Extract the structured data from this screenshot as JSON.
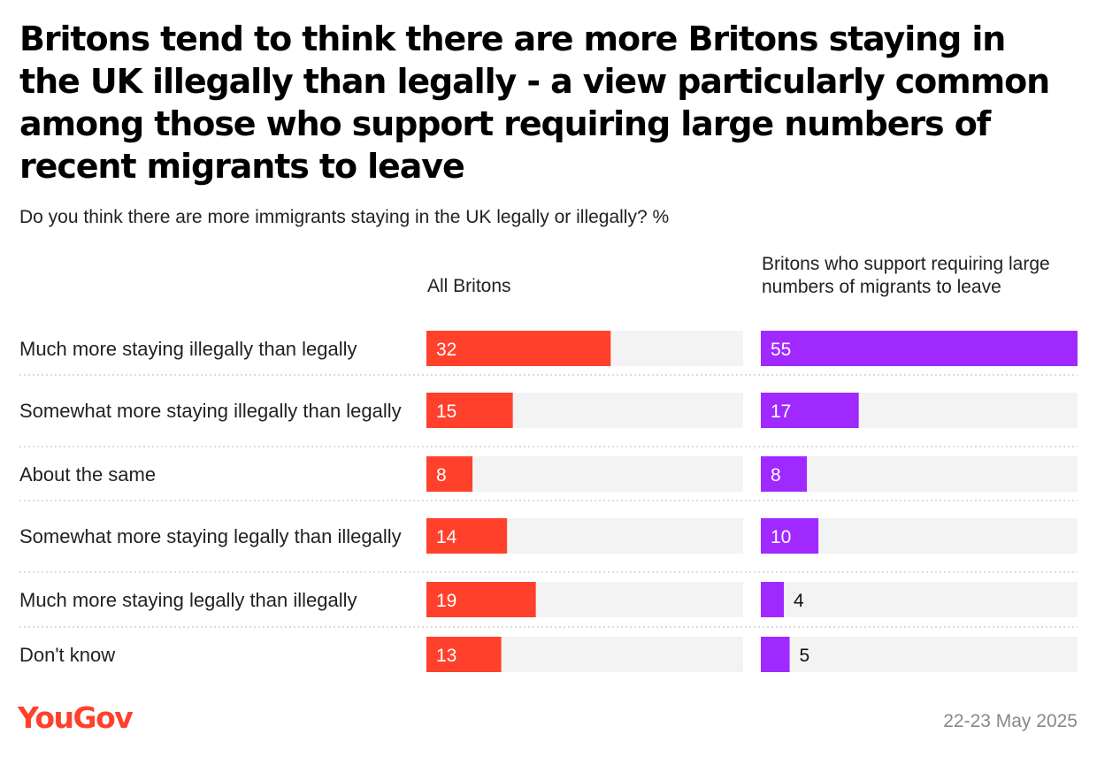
{
  "chart_data": {
    "type": "bar",
    "orientation": "horizontal",
    "title": "Britons tend to think there are more Britons staying in the UK illegally than legally - a view particularly common among those who support requiring large numbers of recent migrants to leave",
    "subtitle": "Do you think there are more immigrants staying in the UK legally or illegally? %",
    "categories": [
      "Much more staying illegally than legally",
      "Somewhat more staying illegally than legally",
      "About the same",
      "Somewhat more staying legally than illegally",
      "Much more staying legally than illegally",
      "Don't know"
    ],
    "series": [
      {
        "name": "All Britons",
        "values": [
          32,
          15,
          8,
          14,
          19,
          13
        ],
        "color": "#ff412c"
      },
      {
        "name": "Britons who support requiring large numbers of migrants to leave",
        "values": [
          55,
          17,
          8,
          10,
          4,
          5
        ],
        "color": "#9f29ff"
      }
    ],
    "xlim": [
      0,
      55
    ],
    "track_color": "#f3f3f3",
    "grid": false,
    "legend": "column-headers"
  },
  "footer": {
    "logo": "YouGov",
    "date": "22-23 May 2025",
    "logo_color": "#ff412c"
  }
}
